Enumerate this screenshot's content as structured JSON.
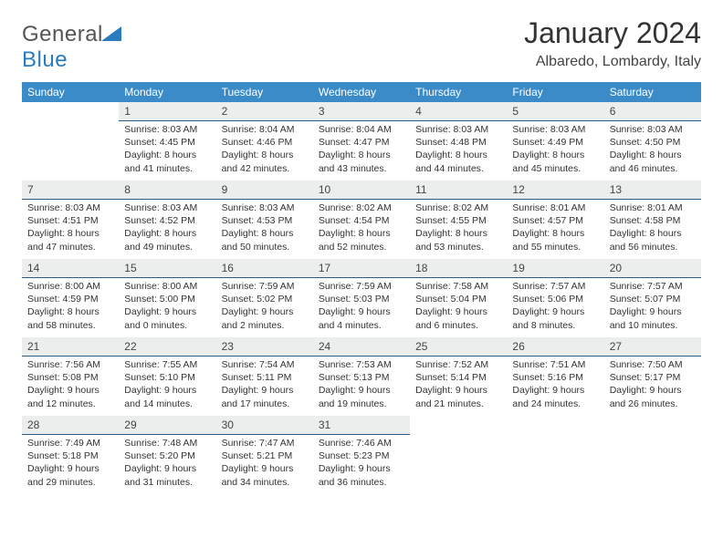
{
  "brand": {
    "part1": "General",
    "part2": "Blue"
  },
  "title": "January 2024",
  "subtitle": "Albaredo, Lombardy, Italy",
  "colors": {
    "header_bg": "#3b8bc8",
    "daynum_bg": "#eceded",
    "daynum_border": "#2b5d8a",
    "text": "#333333",
    "brand_blue": "#2b7bbf"
  },
  "weekdays": [
    "Sunday",
    "Monday",
    "Tuesday",
    "Wednesday",
    "Thursday",
    "Friday",
    "Saturday"
  ],
  "days": [
    {
      "n": "",
      "sunrise": "",
      "sunset": "",
      "daylight1": "",
      "daylight2": ""
    },
    {
      "n": "1",
      "sunrise": "Sunrise: 8:03 AM",
      "sunset": "Sunset: 4:45 PM",
      "daylight1": "Daylight: 8 hours",
      "daylight2": "and 41 minutes."
    },
    {
      "n": "2",
      "sunrise": "Sunrise: 8:04 AM",
      "sunset": "Sunset: 4:46 PM",
      "daylight1": "Daylight: 8 hours",
      "daylight2": "and 42 minutes."
    },
    {
      "n": "3",
      "sunrise": "Sunrise: 8:04 AM",
      "sunset": "Sunset: 4:47 PM",
      "daylight1": "Daylight: 8 hours",
      "daylight2": "and 43 minutes."
    },
    {
      "n": "4",
      "sunrise": "Sunrise: 8:03 AM",
      "sunset": "Sunset: 4:48 PM",
      "daylight1": "Daylight: 8 hours",
      "daylight2": "and 44 minutes."
    },
    {
      "n": "5",
      "sunrise": "Sunrise: 8:03 AM",
      "sunset": "Sunset: 4:49 PM",
      "daylight1": "Daylight: 8 hours",
      "daylight2": "and 45 minutes."
    },
    {
      "n": "6",
      "sunrise": "Sunrise: 8:03 AM",
      "sunset": "Sunset: 4:50 PM",
      "daylight1": "Daylight: 8 hours",
      "daylight2": "and 46 minutes."
    },
    {
      "n": "7",
      "sunrise": "Sunrise: 8:03 AM",
      "sunset": "Sunset: 4:51 PM",
      "daylight1": "Daylight: 8 hours",
      "daylight2": "and 47 minutes."
    },
    {
      "n": "8",
      "sunrise": "Sunrise: 8:03 AM",
      "sunset": "Sunset: 4:52 PM",
      "daylight1": "Daylight: 8 hours",
      "daylight2": "and 49 minutes."
    },
    {
      "n": "9",
      "sunrise": "Sunrise: 8:03 AM",
      "sunset": "Sunset: 4:53 PM",
      "daylight1": "Daylight: 8 hours",
      "daylight2": "and 50 minutes."
    },
    {
      "n": "10",
      "sunrise": "Sunrise: 8:02 AM",
      "sunset": "Sunset: 4:54 PM",
      "daylight1": "Daylight: 8 hours",
      "daylight2": "and 52 minutes."
    },
    {
      "n": "11",
      "sunrise": "Sunrise: 8:02 AM",
      "sunset": "Sunset: 4:55 PM",
      "daylight1": "Daylight: 8 hours",
      "daylight2": "and 53 minutes."
    },
    {
      "n": "12",
      "sunrise": "Sunrise: 8:01 AM",
      "sunset": "Sunset: 4:57 PM",
      "daylight1": "Daylight: 8 hours",
      "daylight2": "and 55 minutes."
    },
    {
      "n": "13",
      "sunrise": "Sunrise: 8:01 AM",
      "sunset": "Sunset: 4:58 PM",
      "daylight1": "Daylight: 8 hours",
      "daylight2": "and 56 minutes."
    },
    {
      "n": "14",
      "sunrise": "Sunrise: 8:00 AM",
      "sunset": "Sunset: 4:59 PM",
      "daylight1": "Daylight: 8 hours",
      "daylight2": "and 58 minutes."
    },
    {
      "n": "15",
      "sunrise": "Sunrise: 8:00 AM",
      "sunset": "Sunset: 5:00 PM",
      "daylight1": "Daylight: 9 hours",
      "daylight2": "and 0 minutes."
    },
    {
      "n": "16",
      "sunrise": "Sunrise: 7:59 AM",
      "sunset": "Sunset: 5:02 PM",
      "daylight1": "Daylight: 9 hours",
      "daylight2": "and 2 minutes."
    },
    {
      "n": "17",
      "sunrise": "Sunrise: 7:59 AM",
      "sunset": "Sunset: 5:03 PM",
      "daylight1": "Daylight: 9 hours",
      "daylight2": "and 4 minutes."
    },
    {
      "n": "18",
      "sunrise": "Sunrise: 7:58 AM",
      "sunset": "Sunset: 5:04 PM",
      "daylight1": "Daylight: 9 hours",
      "daylight2": "and 6 minutes."
    },
    {
      "n": "19",
      "sunrise": "Sunrise: 7:57 AM",
      "sunset": "Sunset: 5:06 PM",
      "daylight1": "Daylight: 9 hours",
      "daylight2": "and 8 minutes."
    },
    {
      "n": "20",
      "sunrise": "Sunrise: 7:57 AM",
      "sunset": "Sunset: 5:07 PM",
      "daylight1": "Daylight: 9 hours",
      "daylight2": "and 10 minutes."
    },
    {
      "n": "21",
      "sunrise": "Sunrise: 7:56 AM",
      "sunset": "Sunset: 5:08 PM",
      "daylight1": "Daylight: 9 hours",
      "daylight2": "and 12 minutes."
    },
    {
      "n": "22",
      "sunrise": "Sunrise: 7:55 AM",
      "sunset": "Sunset: 5:10 PM",
      "daylight1": "Daylight: 9 hours",
      "daylight2": "and 14 minutes."
    },
    {
      "n": "23",
      "sunrise": "Sunrise: 7:54 AM",
      "sunset": "Sunset: 5:11 PM",
      "daylight1": "Daylight: 9 hours",
      "daylight2": "and 17 minutes."
    },
    {
      "n": "24",
      "sunrise": "Sunrise: 7:53 AM",
      "sunset": "Sunset: 5:13 PM",
      "daylight1": "Daylight: 9 hours",
      "daylight2": "and 19 minutes."
    },
    {
      "n": "25",
      "sunrise": "Sunrise: 7:52 AM",
      "sunset": "Sunset: 5:14 PM",
      "daylight1": "Daylight: 9 hours",
      "daylight2": "and 21 minutes."
    },
    {
      "n": "26",
      "sunrise": "Sunrise: 7:51 AM",
      "sunset": "Sunset: 5:16 PM",
      "daylight1": "Daylight: 9 hours",
      "daylight2": "and 24 minutes."
    },
    {
      "n": "27",
      "sunrise": "Sunrise: 7:50 AM",
      "sunset": "Sunset: 5:17 PM",
      "daylight1": "Daylight: 9 hours",
      "daylight2": "and 26 minutes."
    },
    {
      "n": "28",
      "sunrise": "Sunrise: 7:49 AM",
      "sunset": "Sunset: 5:18 PM",
      "daylight1": "Daylight: 9 hours",
      "daylight2": "and 29 minutes."
    },
    {
      "n": "29",
      "sunrise": "Sunrise: 7:48 AM",
      "sunset": "Sunset: 5:20 PM",
      "daylight1": "Daylight: 9 hours",
      "daylight2": "and 31 minutes."
    },
    {
      "n": "30",
      "sunrise": "Sunrise: 7:47 AM",
      "sunset": "Sunset: 5:21 PM",
      "daylight1": "Daylight: 9 hours",
      "daylight2": "and 34 minutes."
    },
    {
      "n": "31",
      "sunrise": "Sunrise: 7:46 AM",
      "sunset": "Sunset: 5:23 PM",
      "daylight1": "Daylight: 9 hours",
      "daylight2": "and 36 minutes."
    },
    {
      "n": "",
      "sunrise": "",
      "sunset": "",
      "daylight1": "",
      "daylight2": ""
    },
    {
      "n": "",
      "sunrise": "",
      "sunset": "",
      "daylight1": "",
      "daylight2": ""
    },
    {
      "n": "",
      "sunrise": "",
      "sunset": "",
      "daylight1": "",
      "daylight2": ""
    }
  ]
}
